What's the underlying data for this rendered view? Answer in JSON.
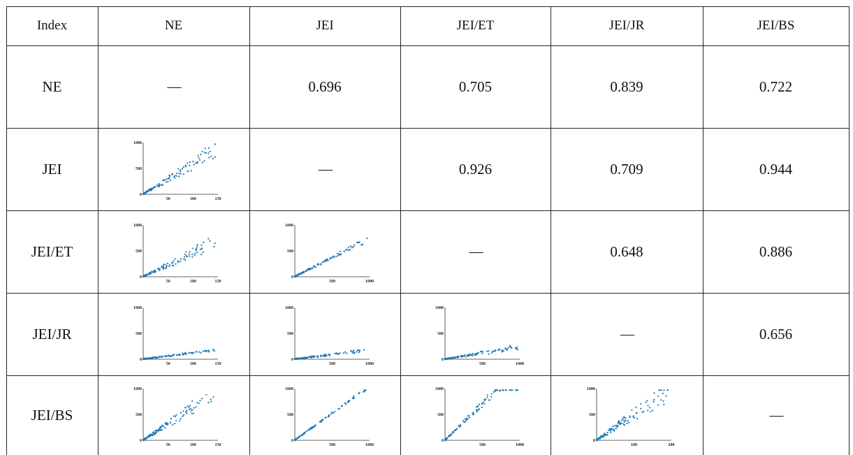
{
  "table": {
    "index_header": "Index",
    "columns": [
      "NE",
      "JEI",
      "JEI/ET",
      "JEI/JR",
      "JEI/BS"
    ],
    "rows": [
      {
        "label": "NE",
        "cells": [
          "—",
          "0.696",
          "0.705",
          "0.839",
          "0.722"
        ]
      },
      {
        "label": "JEI",
        "cells": [
          "plot",
          "—",
          "0.926",
          "0.709",
          "0.944"
        ]
      },
      {
        "label": "JEI/ET",
        "cells": [
          "plot",
          "plot",
          "—",
          "0.648",
          "0.886"
        ]
      },
      {
        "label": "JEI/JR",
        "cells": [
          "plot",
          "plot",
          "plot",
          "—",
          "0.656"
        ]
      },
      {
        "label": "JEI/BS",
        "cells": [
          "plot",
          "plot",
          "plot",
          "plot",
          "—"
        ]
      }
    ]
  },
  "point_color": "#1f77b4",
  "chart_data": [
    {
      "type": "scatter",
      "row": "JEI",
      "col": "NE",
      "xlim": [
        0,
        150
      ],
      "ylim": [
        0,
        1000
      ],
      "xticks": [
        50,
        100,
        150
      ],
      "yticks": [
        0,
        500,
        1000
      ],
      "slope": 6.0,
      "spread": 0.22
    },
    {
      "type": "scatter",
      "row": "JEI/ET",
      "col": "NE",
      "xlim": [
        0,
        150
      ],
      "ylim": [
        0,
        1000
      ],
      "xticks": [
        50,
        100,
        150
      ],
      "yticks": [
        0,
        500,
        1000
      ],
      "slope": 4.6,
      "spread": 0.22
    },
    {
      "type": "scatter",
      "row": "JEI/ET",
      "col": "JEI",
      "xlim": [
        0,
        1000
      ],
      "ylim": [
        0,
        1000
      ],
      "xticks": [
        500,
        1000
      ],
      "yticks": [
        0,
        500,
        1000
      ],
      "slope": 0.74,
      "spread": 0.08
    },
    {
      "type": "scatter",
      "row": "JEI/JR",
      "col": "NE",
      "xlim": [
        0,
        150
      ],
      "ylim": [
        0,
        1000
      ],
      "xticks": [
        50,
        100,
        150
      ],
      "yticks": [
        0,
        500,
        1000
      ],
      "slope": 1.2,
      "spread": 0.12
    },
    {
      "type": "scatter",
      "row": "JEI/JR",
      "col": "JEI",
      "xlim": [
        0,
        1000
      ],
      "ylim": [
        0,
        1000
      ],
      "xticks": [
        500,
        1000
      ],
      "yticks": [
        0,
        500,
        1000
      ],
      "slope": 0.18,
      "spread": 0.2
    },
    {
      "type": "scatter",
      "row": "JEI/JR",
      "col": "JEI/ET",
      "xlim": [
        0,
        1000
      ],
      "ylim": [
        0,
        1000
      ],
      "xticks": [
        500,
        1000
      ],
      "yticks": [
        0,
        500,
        1000
      ],
      "slope": 0.24,
      "spread": 0.25
    },
    {
      "type": "scatter",
      "row": "JEI/BS",
      "col": "NE",
      "xlim": [
        0,
        150
      ],
      "ylim": [
        0,
        1000
      ],
      "xticks": [
        50,
        100,
        150
      ],
      "yticks": [
        0,
        500,
        1000
      ],
      "slope": 6.3,
      "spread": 0.22
    },
    {
      "type": "scatter",
      "row": "JEI/BS",
      "col": "JEI",
      "xlim": [
        0,
        1000
      ],
      "ylim": [
        0,
        1000
      ],
      "xticks": [
        500,
        1000
      ],
      "yticks": [
        0,
        500,
        1000
      ],
      "slope": 1.04,
      "spread": 0.03
    },
    {
      "type": "scatter",
      "row": "JEI/BS",
      "col": "JEI/ET",
      "xlim": [
        0,
        1000
      ],
      "ylim": [
        0,
        1000
      ],
      "xticks": [
        500,
        1000
      ],
      "yticks": [
        0,
        500,
        1000
      ],
      "slope": 1.4,
      "spread": 0.1
    },
    {
      "type": "scatter",
      "row": "JEI/BS",
      "col": "JEI/JR",
      "xlim": [
        0,
        200
      ],
      "ylim": [
        0,
        1000
      ],
      "xticks": [
        100,
        200
      ],
      "yticks": [
        0,
        500,
        1000
      ],
      "slope": 5.0,
      "spread": 0.25
    }
  ]
}
